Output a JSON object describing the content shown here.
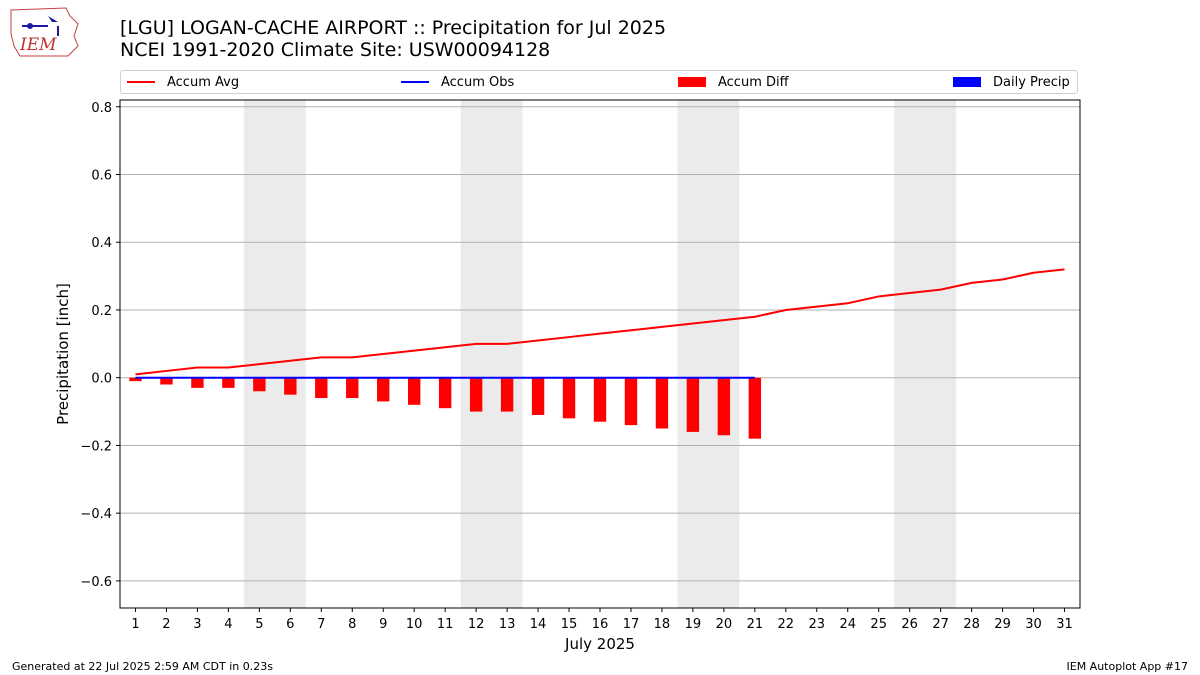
{
  "header": {
    "title_line1": "[LGU] LOGAN-CACHE AIRPORT :: Precipitation for Jul 2025",
    "title_line2": "NCEI 1991-2020 Climate Site: USW00094128",
    "logo_text": "IEM"
  },
  "legend": {
    "items": [
      {
        "label": "Accum Avg",
        "color": "#ff0000",
        "kind": "line"
      },
      {
        "label": "Accum Obs",
        "color": "#0000ff",
        "kind": "line"
      },
      {
        "label": "Accum Diff",
        "color": "#ff0000",
        "kind": "box"
      },
      {
        "label": "Daily Precip",
        "color": "#0000ff",
        "kind": "box"
      }
    ]
  },
  "chart_data": {
    "type": "line",
    "xlabel": "July 2025",
    "ylabel": "Precipitation [inch]",
    "ylim": [
      -0.68,
      0.82
    ],
    "xlim": [
      0.5,
      31.5
    ],
    "y_ticks": [
      -0.6,
      -0.4,
      -0.2,
      0.0,
      0.2,
      0.4,
      0.6,
      0.8
    ],
    "y_tick_labels": [
      "−0.6",
      "−0.4",
      "−0.2",
      "0.0",
      "0.2",
      "0.4",
      "0.6",
      "0.8"
    ],
    "x_ticks": [
      1,
      2,
      3,
      4,
      5,
      6,
      7,
      8,
      9,
      10,
      11,
      12,
      13,
      14,
      15,
      16,
      17,
      18,
      19,
      20,
      21,
      22,
      23,
      24,
      25,
      26,
      27,
      28,
      29,
      30,
      31
    ],
    "weekend_shading": [
      [
        4.5,
        6.5
      ],
      [
        11.5,
        13.5
      ],
      [
        18.5,
        20.5
      ],
      [
        25.5,
        27.5
      ]
    ],
    "grid": true,
    "series": [
      {
        "name": "Accum Avg",
        "type": "line",
        "color": "#ff0000",
        "x": [
          1,
          2,
          3,
          4,
          5,
          6,
          7,
          8,
          9,
          10,
          11,
          12,
          13,
          14,
          15,
          16,
          17,
          18,
          19,
          20,
          21,
          22,
          23,
          24,
          25,
          26,
          27,
          28,
          29,
          30,
          31
        ],
        "values": [
          0.01,
          0.02,
          0.03,
          0.03,
          0.04,
          0.05,
          0.06,
          0.06,
          0.07,
          0.08,
          0.09,
          0.1,
          0.1,
          0.11,
          0.12,
          0.13,
          0.14,
          0.15,
          0.16,
          0.17,
          0.18,
          0.2,
          0.21,
          0.22,
          0.24,
          0.25,
          0.26,
          0.28,
          0.29,
          0.31,
          0.32
        ]
      },
      {
        "name": "Accum Obs",
        "type": "line",
        "color": "#0000ff",
        "x": [
          1,
          2,
          3,
          4,
          5,
          6,
          7,
          8,
          9,
          10,
          11,
          12,
          13,
          14,
          15,
          16,
          17,
          18,
          19,
          20,
          21
        ],
        "values": [
          0,
          0,
          0,
          0,
          0,
          0,
          0,
          0,
          0,
          0,
          0,
          0,
          0,
          0,
          0,
          0,
          0,
          0,
          0,
          0,
          0
        ]
      },
      {
        "name": "Accum Diff",
        "type": "bar",
        "color": "#ff0000",
        "x": [
          1,
          2,
          3,
          4,
          5,
          6,
          7,
          8,
          9,
          10,
          11,
          12,
          13,
          14,
          15,
          16,
          17,
          18,
          19,
          20,
          21
        ],
        "values": [
          -0.01,
          -0.02,
          -0.03,
          -0.03,
          -0.04,
          -0.05,
          -0.06,
          -0.06,
          -0.07,
          -0.08,
          -0.09,
          -0.1,
          -0.1,
          -0.11,
          -0.12,
          -0.13,
          -0.14,
          -0.15,
          -0.16,
          -0.17,
          -0.18
        ]
      },
      {
        "name": "Daily Precip",
        "type": "bar",
        "color": "#0000ff",
        "x": [
          1,
          2,
          3,
          4,
          5,
          6,
          7,
          8,
          9,
          10,
          11,
          12,
          13,
          14,
          15,
          16,
          17,
          18,
          19,
          20,
          21
        ],
        "values": [
          0,
          0,
          0,
          0,
          0,
          0,
          0,
          0,
          0,
          0,
          0,
          0,
          0,
          0,
          0,
          0,
          0,
          0,
          0,
          0,
          0
        ]
      }
    ]
  },
  "footer": {
    "generated": "Generated at 22 Jul 2025 2:59 AM CDT in 0.23s",
    "app": "IEM Autoplot App #17"
  }
}
